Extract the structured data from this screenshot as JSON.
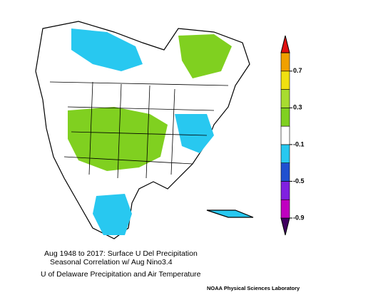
{
  "chart_data": {
    "type": "map",
    "caption": [
      "Aug 1948 to 2017: Surface U Del Precipitation",
      "Seasonal Correlation w/ Aug Nino3.4",
      "U of Delaware Precipitation and Air Temperature"
    ],
    "credit": "NOAA Physical Sciences Laboratory",
    "colorbar": {
      "levels": [
        -0.9,
        -0.7,
        -0.5,
        -0.3,
        -0.1,
        0.1,
        0.3,
        0.5,
        0.7,
        0.9
      ],
      "colors": [
        "#400060",
        "#c000c0",
        "#8020e0",
        "#2050d0",
        "#28c8f0",
        "#ffffff",
        "#80d020",
        "#a8dc30",
        "#f0e010",
        "#f0a000",
        "#e01010"
      ],
      "ticks": [
        0.7,
        0.3,
        -0.1,
        -0.5,
        -0.9
      ]
    }
  }
}
